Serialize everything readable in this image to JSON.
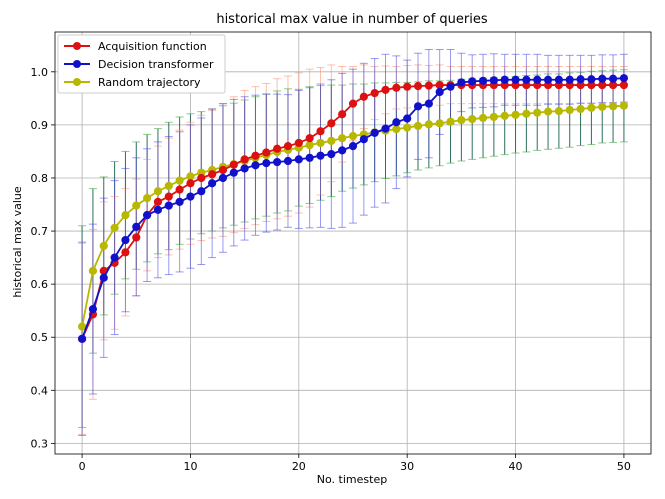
{
  "chart_data": {
    "type": "line",
    "title": "historical max value in number of queries",
    "xlabel": "No. timestep",
    "ylabel": "historical max value",
    "xlim": [
      -2.5,
      52.5
    ],
    "ylim": [
      0.28,
      1.075
    ],
    "xticks": [
      0,
      10,
      20,
      30,
      40,
      50
    ],
    "xtick_labels": [
      "0",
      "10",
      "20",
      "30",
      "40",
      "50"
    ],
    "yticks": [
      0.3,
      0.4,
      0.5,
      0.6,
      0.7,
      0.8,
      0.9,
      1.0
    ],
    "ytick_labels": [
      "0.3",
      "0.4",
      "0.5",
      "0.6",
      "0.7",
      "0.8",
      "0.9",
      "1.0"
    ],
    "grid": true,
    "legend_position": "top-left",
    "x": [
      0,
      1,
      2,
      3,
      4,
      5,
      6,
      7,
      8,
      9,
      10,
      11,
      12,
      13,
      14,
      15,
      16,
      17,
      18,
      19,
      20,
      21,
      22,
      23,
      24,
      25,
      26,
      27,
      28,
      29,
      30,
      31,
      32,
      33,
      34,
      35,
      36,
      37,
      38,
      39,
      40,
      41,
      42,
      43,
      44,
      45,
      46,
      47,
      48,
      49,
      50
    ],
    "series": [
      {
        "name": "Acquisition function",
        "color": "#dd1111",
        "values": [
          0.497,
          0.543,
          0.625,
          0.64,
          0.66,
          0.688,
          0.73,
          0.755,
          0.765,
          0.778,
          0.79,
          0.8,
          0.807,
          0.815,
          0.825,
          0.835,
          0.842,
          0.848,
          0.855,
          0.86,
          0.866,
          0.875,
          0.888,
          0.903,
          0.92,
          0.94,
          0.953,
          0.96,
          0.966,
          0.97,
          0.972,
          0.973,
          0.974,
          0.975,
          0.975,
          0.975,
          0.975,
          0.975,
          0.975,
          0.975,
          0.975,
          0.975,
          0.975,
          0.975,
          0.975,
          0.975,
          0.975,
          0.975,
          0.975,
          0.975,
          0.975
        ],
        "err": [
          0.18,
          0.16,
          0.13,
          0.125,
          0.12,
          0.11,
          0.105,
          0.105,
          0.11,
          0.112,
          0.115,
          0.118,
          0.12,
          0.125,
          0.128,
          0.13,
          0.13,
          0.13,
          0.132,
          0.132,
          0.132,
          0.13,
          0.12,
          0.11,
          0.09,
          0.07,
          0.06,
          0.05,
          0.045,
          0.04,
          0.04,
          0.04,
          0.038,
          0.038,
          0.035,
          0.035,
          0.035,
          0.035,
          0.035,
          0.035,
          0.035,
          0.035,
          0.035,
          0.035,
          0.035,
          0.035,
          0.035,
          0.035,
          0.035,
          0.035,
          0.035
        ]
      },
      {
        "name": "Decision transformer",
        "color": "#1111cc",
        "values": [
          0.497,
          0.553,
          0.612,
          0.65,
          0.683,
          0.708,
          0.73,
          0.74,
          0.748,
          0.755,
          0.765,
          0.775,
          0.79,
          0.8,
          0.81,
          0.818,
          0.824,
          0.828,
          0.83,
          0.832,
          0.835,
          0.838,
          0.842,
          0.845,
          0.852,
          0.86,
          0.873,
          0.885,
          0.893,
          0.905,
          0.912,
          0.935,
          0.94,
          0.962,
          0.972,
          0.98,
          0.982,
          0.983,
          0.984,
          0.985,
          0.985,
          0.985,
          0.985,
          0.985,
          0.985,
          0.985,
          0.986,
          0.986,
          0.987,
          0.987,
          0.988
        ],
        "err": [
          0.182,
          0.16,
          0.15,
          0.145,
          0.135,
          0.13,
          0.125,
          0.128,
          0.13,
          0.132,
          0.135,
          0.138,
          0.14,
          0.14,
          0.138,
          0.135,
          0.132,
          0.13,
          0.128,
          0.125,
          0.13,
          0.132,
          0.135,
          0.14,
          0.145,
          0.145,
          0.143,
          0.14,
          0.14,
          0.125,
          0.11,
          0.1,
          0.102,
          0.08,
          0.07,
          0.055,
          0.05,
          0.05,
          0.05,
          0.048,
          0.048,
          0.048,
          0.048,
          0.046,
          0.046,
          0.046,
          0.045,
          0.045,
          0.045,
          0.045,
          0.045
        ]
      },
      {
        "name": "Random trajectory",
        "color": "#b8b800",
        "values": [
          0.52,
          0.625,
          0.672,
          0.706,
          0.73,
          0.748,
          0.762,
          0.775,
          0.785,
          0.795,
          0.803,
          0.81,
          0.815,
          0.821,
          0.826,
          0.832,
          0.838,
          0.843,
          0.849,
          0.853,
          0.857,
          0.862,
          0.866,
          0.87,
          0.875,
          0.879,
          0.882,
          0.886,
          0.889,
          0.892,
          0.895,
          0.898,
          0.901,
          0.903,
          0.906,
          0.909,
          0.911,
          0.913,
          0.915,
          0.917,
          0.919,
          0.921,
          0.923,
          0.925,
          0.926,
          0.928,
          0.93,
          0.932,
          0.934,
          0.935,
          0.936
        ],
        "err": [
          0.19,
          0.155,
          0.13,
          0.125,
          0.12,
          0.12,
          0.12,
          0.118,
          0.12,
          0.12,
          0.118,
          0.115,
          0.115,
          0.115,
          0.115,
          0.115,
          0.115,
          0.115,
          0.115,
          0.115,
          0.11,
          0.11,
          0.108,
          0.105,
          0.1,
          0.098,
          0.095,
          0.093,
          0.09,
          0.088,
          0.085,
          0.083,
          0.082,
          0.08,
          0.078,
          0.077,
          0.076,
          0.075,
          0.074,
          0.073,
          0.072,
          0.072,
          0.071,
          0.071,
          0.07,
          0.07,
          0.069,
          0.069,
          0.068,
          0.068,
          0.068
        ]
      }
    ]
  },
  "colors": {
    "grid": "#b0b0b0",
    "teal_errorbar": "#2e6e60"
  }
}
